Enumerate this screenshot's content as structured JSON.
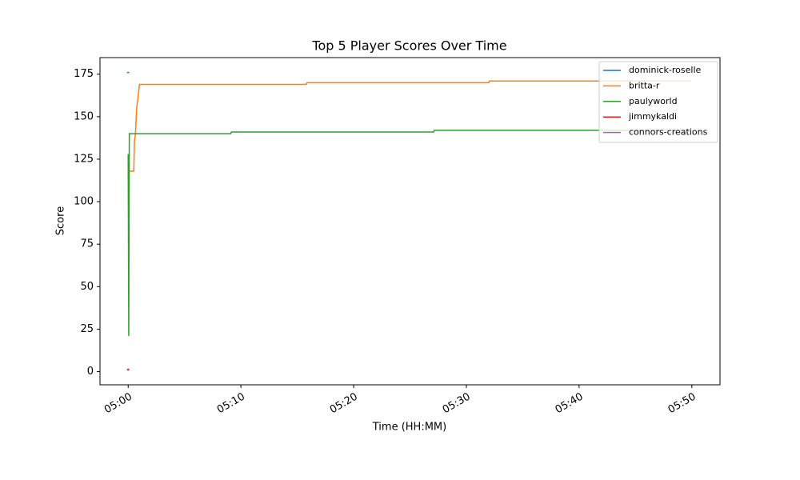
{
  "chart_data": {
    "type": "line",
    "title": "Top 5 Player Scores Over Time",
    "x_label": "Time (HH:MM)",
    "y_label": "Score",
    "xlim": [
      -2.5,
      52.5
    ],
    "ylim": [
      -7.75,
      184.75
    ],
    "xticks": [
      {
        "value": 0,
        "label": "05:00"
      },
      {
        "value": 10,
        "label": "05:10"
      },
      {
        "value": 20,
        "label": "05:20"
      },
      {
        "value": 30,
        "label": "05:30"
      },
      {
        "value": 40,
        "label": "05:40"
      },
      {
        "value": 50,
        "label": "05:50"
      }
    ],
    "yticks": [
      0,
      25,
      50,
      75,
      100,
      125,
      150,
      175
    ],
    "grid": false,
    "legend": "upper right",
    "series": [
      {
        "name": "dominick-roselle",
        "color": "#1f77b4",
        "x": [
          -0.1,
          0.1
        ],
        "values": [
          176,
          176
        ]
      },
      {
        "name": "britta-r",
        "color": "#ff7f0e",
        "x": [
          0.15,
          0.5,
          0.55,
          0.65,
          0.75,
          0.85,
          1.0,
          15.8,
          15.85,
          32.0,
          32.05,
          50
        ],
        "values": [
          118,
          118,
          135,
          140,
          155,
          160,
          169,
          169,
          170,
          170,
          171,
          171
        ]
      },
      {
        "name": "paulyworld",
        "color": "#2ca02c",
        "x": [
          0,
          0.05,
          0.1,
          0.15,
          9.1,
          9.15,
          27.1,
          27.15,
          50
        ],
        "values": [
          128,
          21,
          140,
          140,
          140,
          141,
          141,
          142,
          142
        ]
      },
      {
        "name": "jimmykaldi",
        "color": "#d62728",
        "x": [
          -0.1,
          0.1
        ],
        "values": [
          1,
          1
        ]
      },
      {
        "name": "connors-creations",
        "color": "#9467bd",
        "x": [
          -0.1,
          0.1
        ],
        "values": [
          1.5,
          1.5
        ]
      }
    ]
  }
}
